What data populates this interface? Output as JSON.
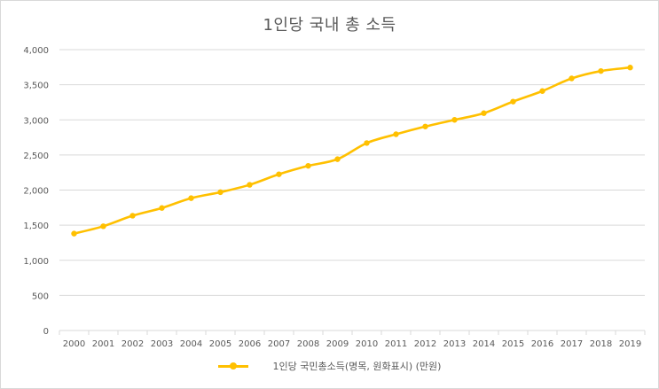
{
  "colors": {
    "series": "#FFC000",
    "grid": "#d9d9d9",
    "axis_text": "#595959"
  },
  "chart_data": {
    "type": "line",
    "title": "1인당 국내 총 소득",
    "xlabel": "",
    "ylabel": "",
    "categories": [
      "2000",
      "2001",
      "2002",
      "2003",
      "2004",
      "2005",
      "2006",
      "2007",
      "2008",
      "2009",
      "2010",
      "2011",
      "2012",
      "2013",
      "2014",
      "2015",
      "2016",
      "2017",
      "2018",
      "2019"
    ],
    "series": [
      {
        "name": "1인당 국민총소득(명목, 원화표시) (만원)",
        "values": [
          1380,
          1485,
          1635,
          1745,
          1885,
          1970,
          2075,
          2225,
          2345,
          2440,
          2670,
          2795,
          2905,
          3000,
          3095,
          3260,
          3410,
          3590,
          3695,
          3745
        ]
      }
    ],
    "y_ticks": [
      "0",
      "500",
      "1,000",
      "1,500",
      "2,000",
      "2,500",
      "3,000",
      "3,500",
      "4,000"
    ],
    "ylim": [
      0,
      4000
    ],
    "grid": true,
    "legend_position": "bottom"
  }
}
